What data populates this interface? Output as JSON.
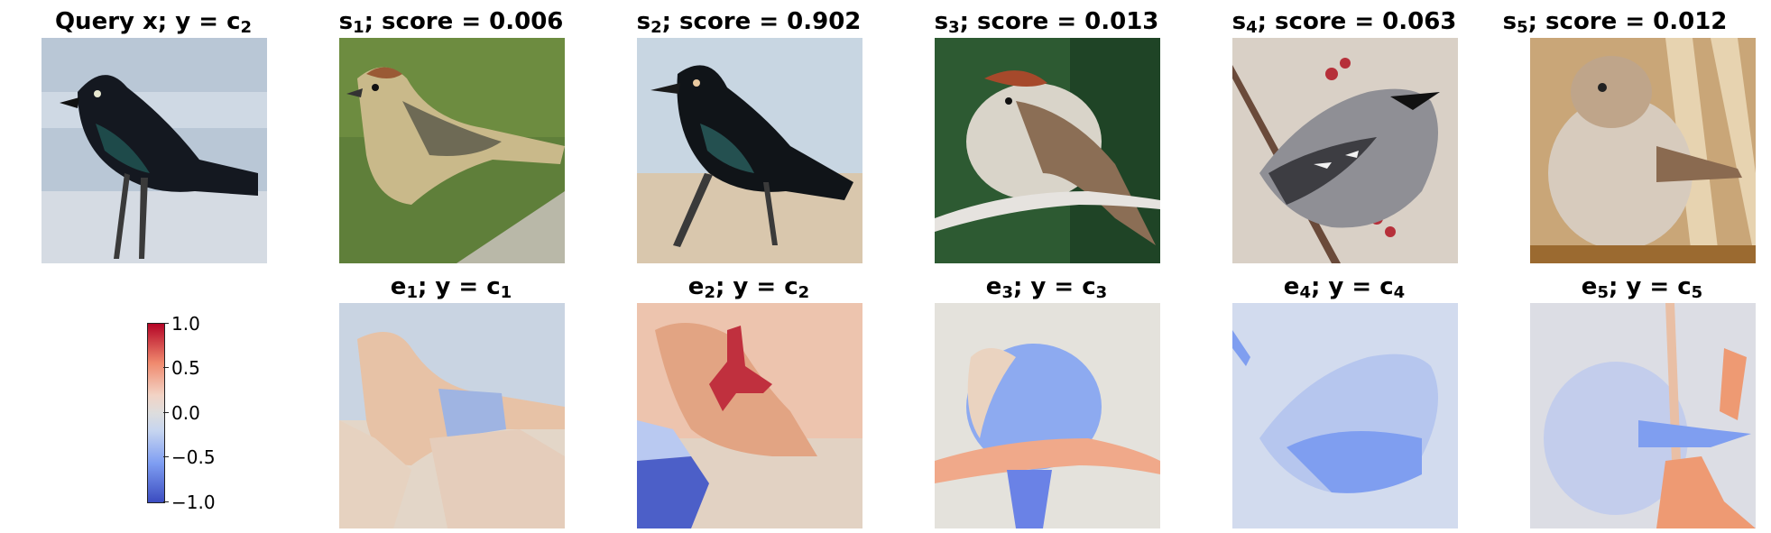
{
  "query": {
    "title_prefix": "Query x; y = c",
    "title_sub": "2"
  },
  "samples": [
    {
      "title_s": "s",
      "sub": "1",
      "score_text": "; score = 0.006"
    },
    {
      "title_s": "s",
      "sub": "2",
      "score_text": "; score = 0.902"
    },
    {
      "title_s": "s",
      "sub": "3",
      "score_text": "; score = 0.013"
    },
    {
      "title_s": "s",
      "sub": "4",
      "score_text": "; score = 0.063"
    },
    {
      "title_s": "s",
      "sub": "5",
      "score_text": "; score = 0.012"
    }
  ],
  "explanations": [
    {
      "e": "e",
      "sub": "1",
      "mid": "; y = c",
      "csub": "1"
    },
    {
      "e": "e",
      "sub": "2",
      "mid": "; y = c",
      "csub": "2"
    },
    {
      "e": "e",
      "sub": "3",
      "mid": "; y = c",
      "csub": "3"
    },
    {
      "e": "e",
      "sub": "4",
      "mid": "; y = c",
      "csub": "4"
    },
    {
      "e": "e",
      "sub": "5",
      "mid": "; y = c",
      "csub": "5"
    }
  ],
  "colorbar": {
    "labels": [
      "1.0",
      "0.5",
      "0.0",
      "−0.5",
      "−1.0"
    ],
    "colors": {
      "max": "#b40426",
      "mid": "#dddddd",
      "min": "#3b4cc0"
    }
  }
}
